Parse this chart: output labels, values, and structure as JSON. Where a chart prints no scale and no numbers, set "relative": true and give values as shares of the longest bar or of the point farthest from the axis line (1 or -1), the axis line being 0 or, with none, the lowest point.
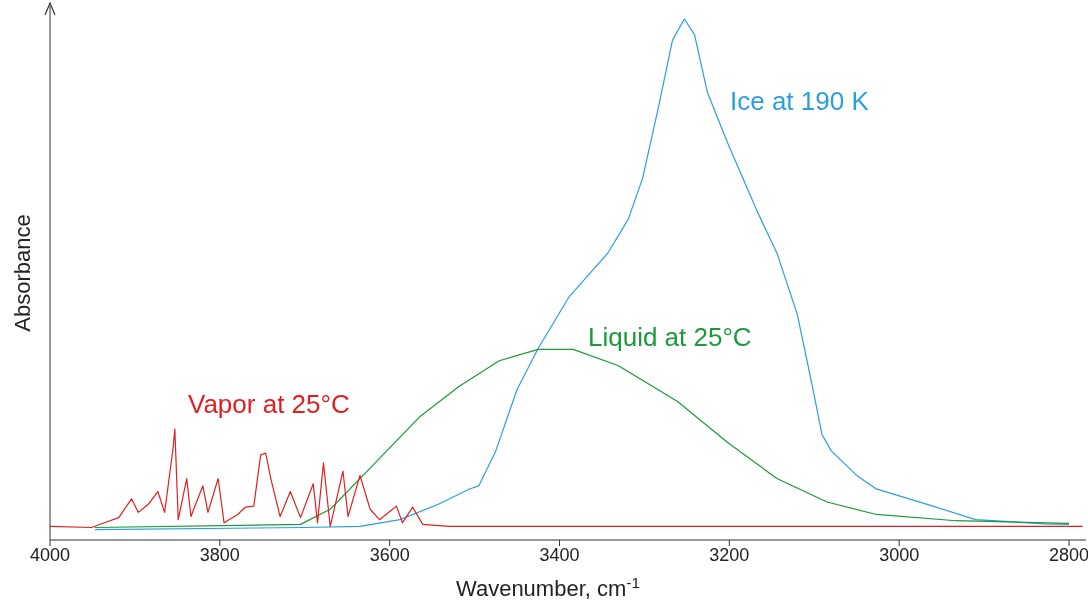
{
  "chart_data": {
    "type": "line",
    "relative": true,
    "xlabel": "Wavenumber, cm$^{-1}$",
    "ylabel": "Absorbance",
    "xlim": [
      4000,
      2780
    ],
    "xticks": [
      4000,
      3800,
      3600,
      3400,
      3200,
      3000,
      2800
    ],
    "marker": "none",
    "line_style": "solid",
    "series": [
      {
        "name": "Ice at 190 K",
        "color": "#2a9fe0",
        "x": [
          3947,
          3700,
          3635,
          3588,
          3542,
          3506,
          3495,
          3475,
          3450,
          3425,
          3389,
          3343,
          3319,
          3302,
          3284,
          3267,
          3253,
          3241,
          3226,
          3202,
          3167,
          3144,
          3120,
          3103,
          3091,
          3080,
          3050,
          3027,
          2968,
          2910,
          2828,
          2800
        ],
        "values": [
          0.02,
          0.024,
          0.026,
          0.039,
          0.069,
          0.098,
          0.104,
          0.171,
          0.289,
          0.368,
          0.466,
          0.551,
          0.616,
          0.695,
          0.827,
          0.959,
          1.0,
          0.97,
          0.86,
          0.762,
          0.63,
          0.551,
          0.433,
          0.301,
          0.203,
          0.171,
          0.124,
          0.098,
          0.069,
          0.039,
          0.031,
          0.03
        ]
      },
      {
        "name": "Liquid at 25°C",
        "color": "#1a9a3a",
        "x": [
          3947,
          3705,
          3670,
          3623,
          3565,
          3518,
          3471,
          3425,
          3384,
          3331,
          3261,
          3202,
          3144,
          3085,
          3027,
          2933,
          2828,
          2800
        ],
        "values": [
          0.024,
          0.03,
          0.059,
          0.138,
          0.236,
          0.295,
          0.344,
          0.366,
          0.366,
          0.335,
          0.266,
          0.187,
          0.118,
          0.073,
          0.049,
          0.037,
          0.033,
          0.032
        ]
      },
      {
        "name": "Vapor at 25°C",
        "color": "#e02020",
        "x": [
          4000,
          3951,
          3936,
          3919,
          3904,
          3896,
          3884,
          3873,
          3865,
          3855,
          3853,
          3849,
          3839,
          3834,
          3820,
          3814,
          3802,
          3795,
          3779,
          3770,
          3760,
          3752,
          3746,
          3740,
          3729,
          3717,
          3705,
          3690,
          3685,
          3678,
          3670,
          3655,
          3649,
          3635,
          3623,
          3612,
          3592,
          3585,
          3573,
          3561,
          3530,
          2784
        ],
        "values": [
          0.026,
          0.024,
          0.033,
          0.043,
          0.079,
          0.053,
          0.069,
          0.093,
          0.053,
          0.177,
          0.213,
          0.039,
          0.118,
          0.045,
          0.104,
          0.053,
          0.118,
          0.033,
          0.049,
          0.063,
          0.065,
          0.163,
          0.167,
          0.118,
          0.045,
          0.093,
          0.043,
          0.108,
          0.033,
          0.148,
          0.026,
          0.132,
          0.045,
          0.124,
          0.059,
          0.039,
          0.065,
          0.033,
          0.063,
          0.03,
          0.026,
          0.026
        ]
      }
    ]
  }
}
